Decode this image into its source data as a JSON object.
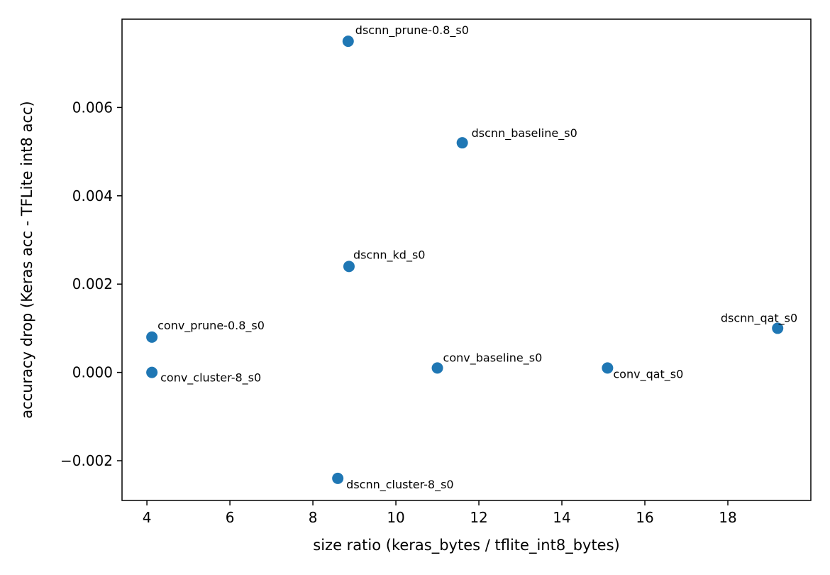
{
  "chart_data": {
    "type": "scatter",
    "title": "",
    "xlabel": "size ratio (keras_bytes / tflite_int8_bytes)",
    "ylabel": "accuracy drop (Keras acc - TFLite int8 acc)",
    "xlim": [
      3.4,
      20.0
    ],
    "ylim": [
      -0.0029,
      0.008
    ],
    "xticks": [
      4,
      6,
      8,
      10,
      12,
      14,
      16,
      18
    ],
    "xtick_labels": [
      "4",
      "6",
      "8",
      "10",
      "12",
      "14",
      "16",
      "18"
    ],
    "yticks": [
      -0.002,
      0.0,
      0.002,
      0.004,
      0.006
    ],
    "ytick_labels": [
      "−0.002",
      "0.000",
      "0.002",
      "0.004",
      "0.006"
    ],
    "grid": false,
    "marker_color": "#1f77b4",
    "points": [
      {
        "label": "dscnn_prune-0.8_s0",
        "x": 8.85,
        "y": 0.0075
      },
      {
        "label": "dscnn_baseline_s0",
        "x": 11.6,
        "y": 0.0052
      },
      {
        "label": "dscnn_kd_s0",
        "x": 8.87,
        "y": 0.0024
      },
      {
        "label": "dscnn_qat_s0",
        "x": 19.2,
        "y": 0.001
      },
      {
        "label": "conv_prune-0.8_s0",
        "x": 4.12,
        "y": 0.0008
      },
      {
        "label": "conv_baseline_s0",
        "x": 11.0,
        "y": 0.0001
      },
      {
        "label": "conv_qat_s0",
        "x": 15.1,
        "y": 0.0001
      },
      {
        "label": "conv_cluster-8_s0",
        "x": 4.12,
        "y": 0.0
      },
      {
        "label": "dscnn_cluster-8_s0",
        "x": 8.6,
        "y": -0.0024
      }
    ]
  }
}
